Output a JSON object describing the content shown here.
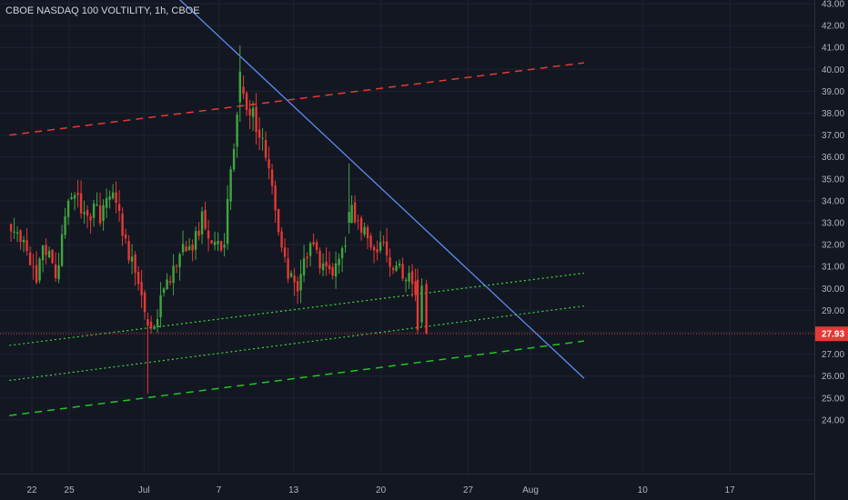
{
  "chart_data": {
    "type": "candlestick",
    "title": "CBOE NASDAQ 100 VOLTILITY, 1h, CBOE",
    "interval": "1h",
    "background_color": "#131722",
    "grid_color": "#1e2330",
    "bull_color": "#26a69a",
    "bull_color_render": "#3fa63f",
    "bear_color": "#e53935",
    "ylim": [
      23.5,
      43.2
    ],
    "yticks": [
      "24.00",
      "25.00",
      "26.00",
      "27.00",
      "28.00",
      "29.00",
      "30.00",
      "31.00",
      "32.00",
      "33.00",
      "34.00",
      "35.00",
      "36.00",
      "37.00",
      "38.00",
      "39.00",
      "40.00",
      "41.00",
      "42.00",
      "43.00"
    ],
    "ytick_values": [
      24,
      25,
      26,
      27,
      28,
      29,
      30,
      31,
      32,
      33,
      34,
      35,
      36,
      37,
      38,
      39,
      40,
      41,
      42,
      43
    ],
    "xlim_day": [
      -1.8,
      44.3
    ],
    "xticks": [
      {
        "label": "22",
        "day": 0
      },
      {
        "label": "25",
        "day": 3
      },
      {
        "label": "Jul",
        "day": 9
      },
      {
        "label": "7",
        "day": 15
      },
      {
        "label": "13",
        "day": 21
      },
      {
        "label": "20",
        "day": 28
      },
      {
        "label": "27",
        "day": 35
      },
      {
        "label": "Aug",
        "day": 40
      },
      {
        "label": "10",
        "day": 49
      },
      {
        "label": "17",
        "day": 56
      }
    ],
    "last_price": 27.93,
    "last_price_label": "27.93",
    "price_line_color": "#e53935",
    "anchors": [
      [
        -1.8,
        32.9
      ],
      [
        -1.0,
        32.5
      ],
      [
        -0.3,
        31.5
      ],
      [
        0.3,
        30.3
      ],
      [
        0.8,
        31.6
      ],
      [
        1.2,
        31.9
      ],
      [
        1.6,
        30.9
      ],
      [
        2.0,
        30.5
      ],
      [
        2.5,
        32.8
      ],
      [
        3.0,
        33.8
      ],
      [
        3.5,
        34.3
      ],
      [
        4.0,
        33.3
      ],
      [
        4.5,
        33.0
      ],
      [
        5.0,
        33.6
      ],
      [
        5.5,
        33.4
      ],
      [
        6.0,
        34.5
      ],
      [
        6.5,
        34.2
      ],
      [
        7.0,
        33.6
      ],
      [
        7.5,
        32.1
      ],
      [
        8.0,
        31.2
      ],
      [
        8.5,
        30.3
      ],
      [
        9.0,
        29.4
      ],
      [
        9.4,
        28.2
      ],
      [
        9.8,
        28.2
      ],
      [
        10.3,
        29.5
      ],
      [
        10.8,
        30.0
      ],
      [
        11.3,
        30.8
      ],
      [
        11.8,
        31.6
      ],
      [
        12.3,
        31.7
      ],
      [
        12.8,
        31.5
      ],
      [
        13.3,
        32.6
      ],
      [
        13.8,
        33.3
      ],
      [
        14.3,
        32.5
      ],
      [
        14.8,
        32.2
      ],
      [
        15.1,
        32.1
      ],
      [
        15.3,
        31.8
      ],
      [
        15.6,
        33.1
      ],
      [
        15.9,
        35.0
      ],
      [
        16.2,
        36.2
      ],
      [
        16.5,
        38.2
      ],
      [
        16.8,
        39.7
      ],
      [
        17.0,
        38.6
      ],
      [
        17.4,
        38.3
      ],
      [
        17.8,
        37.8
      ],
      [
        18.2,
        37.3
      ],
      [
        18.6,
        36.4
      ],
      [
        19.0,
        35.7
      ],
      [
        19.4,
        34.4
      ],
      [
        19.8,
        32.3
      ],
      [
        20.3,
        31.1
      ],
      [
        20.8,
        30.5
      ],
      [
        21.3,
        30.2
      ],
      [
        21.8,
        31.2
      ],
      [
        22.3,
        31.9
      ],
      [
        22.8,
        31.6
      ],
      [
        23.3,
        31.2
      ],
      [
        23.8,
        31.0
      ],
      [
        24.3,
        30.6
      ],
      [
        24.8,
        31.2
      ],
      [
        25.2,
        32.4
      ],
      [
        25.6,
        33.6
      ],
      [
        26.0,
        33.1
      ],
      [
        26.5,
        32.6
      ],
      [
        27.0,
        32.1
      ],
      [
        27.5,
        31.6
      ],
      [
        28.0,
        31.8
      ],
      [
        28.5,
        31.5
      ],
      [
        29.0,
        31.2
      ],
      [
        29.5,
        31.0
      ],
      [
        30.0,
        30.6
      ],
      [
        30.4,
        30.3
      ],
      [
        30.8,
        30.0
      ],
      [
        31.0,
        28.2
      ],
      [
        31.2,
        30.5
      ],
      [
        31.5,
        30.0
      ],
      [
        31.7,
        28.0
      ]
    ],
    "candle_scatter_amp": 0.45,
    "candle_wick_max": 0.65,
    "special_candles": [
      {
        "day": 9.3,
        "o": 28.6,
        "h": 28.9,
        "l": 25.2,
        "c": 28.3
      },
      {
        "day": 16.7,
        "o": 38.5,
        "h": 41.1,
        "l": 37.6,
        "c": 39.9
      },
      {
        "day": 25.45,
        "o": 33.0,
        "h": 35.7,
        "l": 32.5,
        "c": 33.5
      },
      {
        "day": 30.95,
        "o": 30.4,
        "h": 30.9,
        "l": 27.9,
        "c": 28.1
      },
      {
        "day": 31.65,
        "o": 30.2,
        "h": 30.4,
        "l": 27.9,
        "c": 27.93
      }
    ],
    "trendlines": [
      {
        "name": "descending resistance",
        "color": "#5b8def",
        "style": "solid",
        "width": 1.3,
        "p1": {
          "day": 9.2,
          "price": 44.6
        },
        "p2": {
          "day": 44.3,
          "price": 25.9
        }
      },
      {
        "name": "upper channel",
        "color": "#e53935",
        "style": "dashed",
        "width": 1.5,
        "p1": {
          "day": -1.8,
          "price": 37.0
        },
        "p2": {
          "day": 44.3,
          "price": 40.3
        }
      },
      {
        "name": "lower channel",
        "color": "#22c522",
        "style": "dashed",
        "width": 1.5,
        "p1": {
          "day": -1.8,
          "price": 24.2
        },
        "p2": {
          "day": 44.3,
          "price": 27.6
        }
      },
      {
        "name": "dotted upper",
        "color": "#3cd63c",
        "style": "dotted",
        "width": 1.2,
        "p1": {
          "day": -1.8,
          "price": 27.4
        },
        "p2": {
          "day": 44.3,
          "price": 30.7
        }
      },
      {
        "name": "dotted lower",
        "color": "#3cd63c",
        "style": "dotted",
        "width": 1.2,
        "p1": {
          "day": -1.8,
          "price": 25.8
        },
        "p2": {
          "day": 44.3,
          "price": 29.2
        }
      }
    ]
  }
}
